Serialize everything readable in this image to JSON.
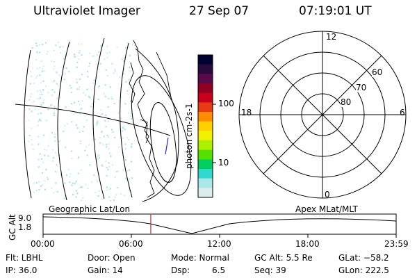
{
  "header": {
    "instrument": "Ultraviolet Imager",
    "date": "27 Sep 07",
    "time": "07:19:01 UT"
  },
  "colorbar": {
    "unit_label": "photon cm-2s-1",
    "ticks": [
      "100",
      "10"
    ],
    "colors": [
      "#000033",
      "#2a0a3d",
      "#5a0a4a",
      "#900020",
      "#c8001e",
      "#e83a14",
      "#ff8c00",
      "#ffd000",
      "#f0f000",
      "#aaf000",
      "#55e000",
      "#00d060",
      "#30d8d0",
      "#a8e8e8",
      "#dcecec"
    ]
  },
  "polar_plot": {
    "mlt_labels": {
      "top": "12",
      "bottom": "0",
      "left": "18",
      "right": "6"
    },
    "lat_labels": [
      "60",
      "70",
      "80"
    ]
  },
  "orbit_panel": {
    "left_title": "Geographic Lat/Lon",
    "right_title": "Apex MLat/MLT",
    "y_axis_label": "GC Alt",
    "y_ticks": [
      "9.0",
      "1.8"
    ],
    "x_ticks": [
      "00:00",
      "06:00",
      "12:00",
      "18:00",
      "23:59"
    ],
    "current_time_marker_hour": 7.32
  },
  "status": {
    "flt": "Flt: LBHL",
    "ip": "IP: 36.0",
    "door": "Door: Open",
    "gain": "Gain: 14",
    "mode": "Mode: Normal",
    "dsp_label": "Dsp:",
    "dsp_value": "6.5",
    "gcalt": "GC Alt: 5.5 Re",
    "seq": "Seq: 39",
    "glat": "GLat: −58.2",
    "glon": "GLon: 222.5"
  }
}
